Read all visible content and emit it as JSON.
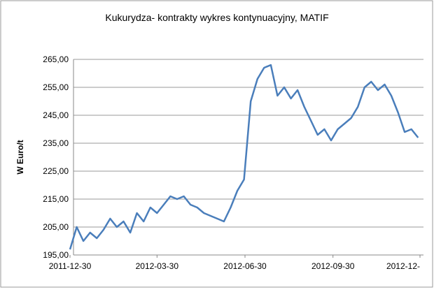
{
  "chart_data": {
    "type": "line",
    "title": "Kukurydza- kontrakty wykres kontynuacyjny, MATIF",
    "y_label": "W Euro/t",
    "x": [
      "2011-12-30",
      "2012-01-06",
      "2012-01-13",
      "2012-01-20",
      "2012-01-27",
      "2012-02-03",
      "2012-02-10",
      "2012-02-17",
      "2012-02-24",
      "2012-03-02",
      "2012-03-09",
      "2012-03-16",
      "2012-03-23",
      "2012-03-30",
      "2012-04-06",
      "2012-04-13",
      "2012-04-20",
      "2012-04-27",
      "2012-05-04",
      "2012-05-11",
      "2012-05-18",
      "2012-05-25",
      "2012-06-01",
      "2012-06-08",
      "2012-06-15",
      "2012-06-22",
      "2012-06-29",
      "2012-07-06",
      "2012-07-13",
      "2012-07-20",
      "2012-07-27",
      "2012-08-03",
      "2012-08-10",
      "2012-08-17",
      "2012-08-24",
      "2012-08-31",
      "2012-09-07",
      "2012-09-14",
      "2012-09-21",
      "2012-09-28",
      "2012-10-05",
      "2012-10-12",
      "2012-10-19",
      "2012-10-26",
      "2012-11-02",
      "2012-11-09",
      "2012-11-16",
      "2012-11-23",
      "2012-11-30",
      "2012-12-07",
      "2012-12-14",
      "2012-12-21",
      "2012-12-28"
    ],
    "series": [
      {
        "name": "MATIF",
        "color": "#4a7ebb",
        "values": [
          197,
          205,
          200,
          203,
          201,
          204,
          208,
          205,
          207,
          203,
          210,
          207,
          212,
          210,
          213,
          216,
          215,
          216,
          213,
          212,
          210,
          209,
          208,
          207,
          212,
          218,
          222,
          250,
          258,
          262,
          263,
          252,
          255,
          251,
          254,
          248,
          243,
          238,
          240,
          236,
          240,
          242,
          244,
          248,
          255,
          257,
          254,
          256,
          252,
          246,
          239,
          240,
          237
        ]
      }
    ],
    "xlim": [
      "2011-12-30",
      "2012-12-30"
    ],
    "xticks": [
      "2011-12-30",
      "2012-03-30",
      "2012-06-30",
      "2012-09-30",
      {
        "value": "2012-12-30",
        "label": "2012-12-"
      }
    ],
    "ylim": [
      195,
      265
    ],
    "yticks": [
      {
        "value": 195,
        "label": "195,00"
      },
      {
        "value": 205,
        "label": "205,00"
      },
      {
        "value": 215,
        "label": "215,00"
      },
      {
        "value": 225,
        "label": "225,00"
      },
      {
        "value": 235,
        "label": "235,00"
      },
      {
        "value": 245,
        "label": "245,00"
      },
      {
        "value": 255,
        "label": "255,00"
      },
      {
        "value": 265,
        "label": "265,00"
      }
    ],
    "grid": true
  }
}
